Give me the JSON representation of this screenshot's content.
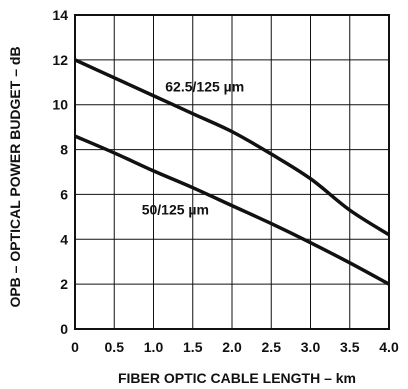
{
  "chart_data": {
    "type": "line",
    "title": "",
    "xlabel": "FIBER OPTIC CABLE LENGTH – km",
    "ylabel": "OPB – OPTICAL POWER BUDGET – dB",
    "xlim": [
      0,
      4.0
    ],
    "ylim": [
      0,
      14
    ],
    "x_ticks": [
      "0",
      "0.5",
      "1.0",
      "1.5",
      "2.0",
      "2.5",
      "3.0",
      "3.5",
      "4.0"
    ],
    "y_ticks": [
      "0",
      "2",
      "4",
      "6",
      "8",
      "10",
      "12",
      "14"
    ],
    "grid": true,
    "legend": "none (inline series labels)",
    "line_color": "#111111",
    "grid_color": "#111111",
    "series": [
      {
        "name": "62.5/125 µm",
        "x": [
          0,
          0.5,
          1.0,
          1.5,
          2.0,
          2.5,
          3.0,
          3.5,
          4.0
        ],
        "y": [
          12.0,
          11.2,
          10.4,
          9.6,
          8.8,
          7.8,
          6.7,
          5.3,
          4.2
        ]
      },
      {
        "name": "50/125 µm",
        "x": [
          0,
          0.5,
          1.0,
          1.5,
          2.0,
          2.5,
          3.0,
          3.5,
          4.0
        ],
        "y": [
          8.6,
          7.85,
          7.05,
          6.3,
          5.5,
          4.7,
          3.85,
          2.95,
          2.0
        ]
      }
    ]
  }
}
